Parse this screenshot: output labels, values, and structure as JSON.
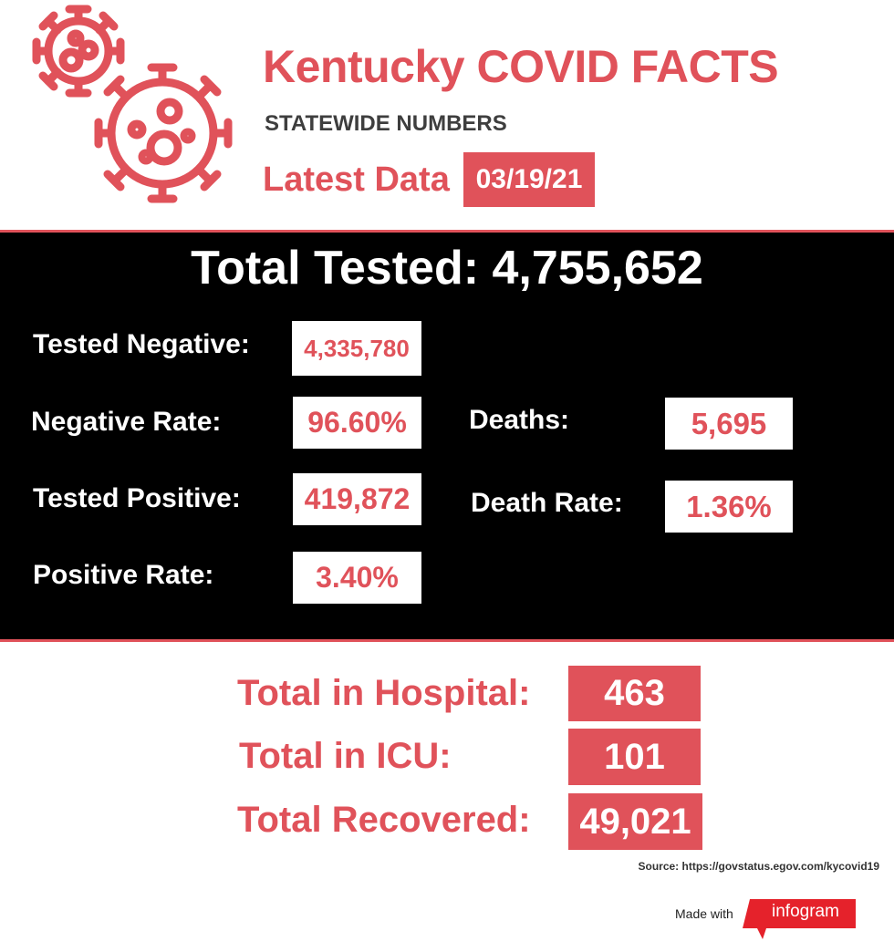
{
  "header": {
    "title": "Kentucky COVID FACTS",
    "subtitle": "STATEWIDE NUMBERS",
    "latest_label": "Latest Data",
    "date": "03/19/21",
    "icon": "virus-icon"
  },
  "stats": {
    "total_tested": "Total Tested: 4,755,652",
    "tested_negative": {
      "label": "Tested Negative:",
      "value": "4,335,780"
    },
    "negative_rate": {
      "label": "Negative Rate:",
      "value": "96.60%"
    },
    "tested_positive": {
      "label": "Tested Positive:",
      "value": "419,872"
    },
    "positive_rate": {
      "label": "Positive Rate:",
      "value": "3.40%"
    },
    "deaths": {
      "label": "Deaths:",
      "value": "5,695"
    },
    "death_rate": {
      "label": "Death Rate:",
      "value": "1.36%"
    }
  },
  "hospital": {
    "in_hospital": {
      "label": "Total in Hospital:",
      "value": "463"
    },
    "in_icu": {
      "label": "Total in ICU:",
      "value": "101"
    },
    "recovered": {
      "label": "Total Recovered:",
      "value": "49,021"
    }
  },
  "footer": {
    "source": "Source: https://govstatus.egov.com/kycovid19",
    "made_with": "Made with",
    "brand": "infogram",
    "icon": "infogram-logo-icon"
  },
  "colors": {
    "accent": "#e0525a",
    "panel": "#000000",
    "background": "#ffffff",
    "subtitle": "#3e3e3e"
  }
}
